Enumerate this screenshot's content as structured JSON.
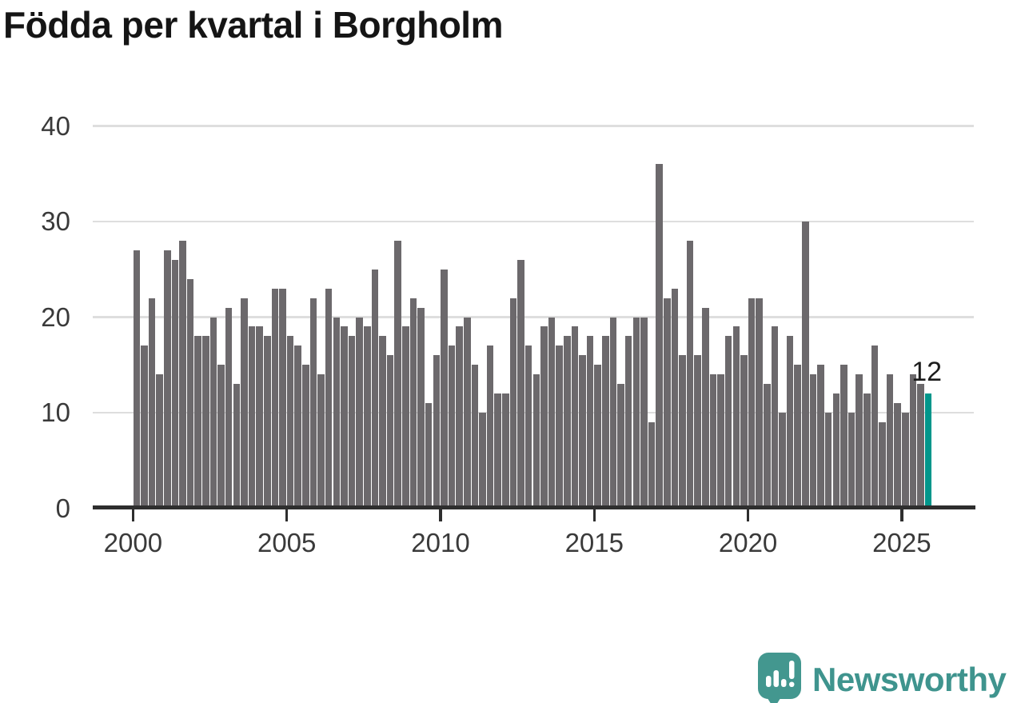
{
  "title": "Födda per kvartal i Borgholm",
  "chart_data": {
    "type": "bar",
    "title": "Födda per kvartal i Borgholm",
    "xlabel": "",
    "ylabel": "",
    "x_start": "2000-Q1",
    "x_end": "2025-Q4",
    "x_tick_labels": [
      "2000",
      "2005",
      "2010",
      "2015",
      "2020",
      "2025"
    ],
    "y_ticks": [
      0,
      10,
      20,
      30,
      40
    ],
    "ylim": [
      0,
      40
    ],
    "grid": "horizontal",
    "bar_color": "#6C696C",
    "series": [
      {
        "name": "Födda per kvartal",
        "values": [
          27,
          17,
          22,
          14,
          27,
          26,
          28,
          24,
          18,
          18,
          20,
          15,
          21,
          13,
          22,
          19,
          19,
          18,
          23,
          23,
          18,
          17,
          15,
          22,
          14,
          23,
          20,
          19,
          18,
          20,
          19,
          25,
          18,
          16,
          28,
          19,
          22,
          21,
          11,
          16,
          25,
          17,
          19,
          20,
          15,
          10,
          17,
          12,
          12,
          22,
          26,
          17,
          14,
          19,
          20,
          17,
          18,
          19,
          16,
          18,
          15,
          18,
          20,
          13,
          18,
          20,
          20,
          9,
          36,
          22,
          23,
          16,
          28,
          16,
          21,
          14,
          14,
          18,
          19,
          16,
          22,
          22,
          13,
          19,
          10,
          18,
          15,
          30,
          14,
          15,
          10,
          12,
          15,
          10,
          14,
          12,
          17,
          9,
          14,
          11,
          10,
          14,
          13,
          12
        ]
      }
    ],
    "highlight": {
      "index": 103,
      "value": 12,
      "label": "12",
      "color": "#00968B"
    }
  },
  "annotation": {
    "last_value_label": "12"
  },
  "branding": {
    "name": "Newsworthy",
    "logo_icon": "speech-bubble-bar-chart-icon",
    "color": "#3F948E"
  }
}
